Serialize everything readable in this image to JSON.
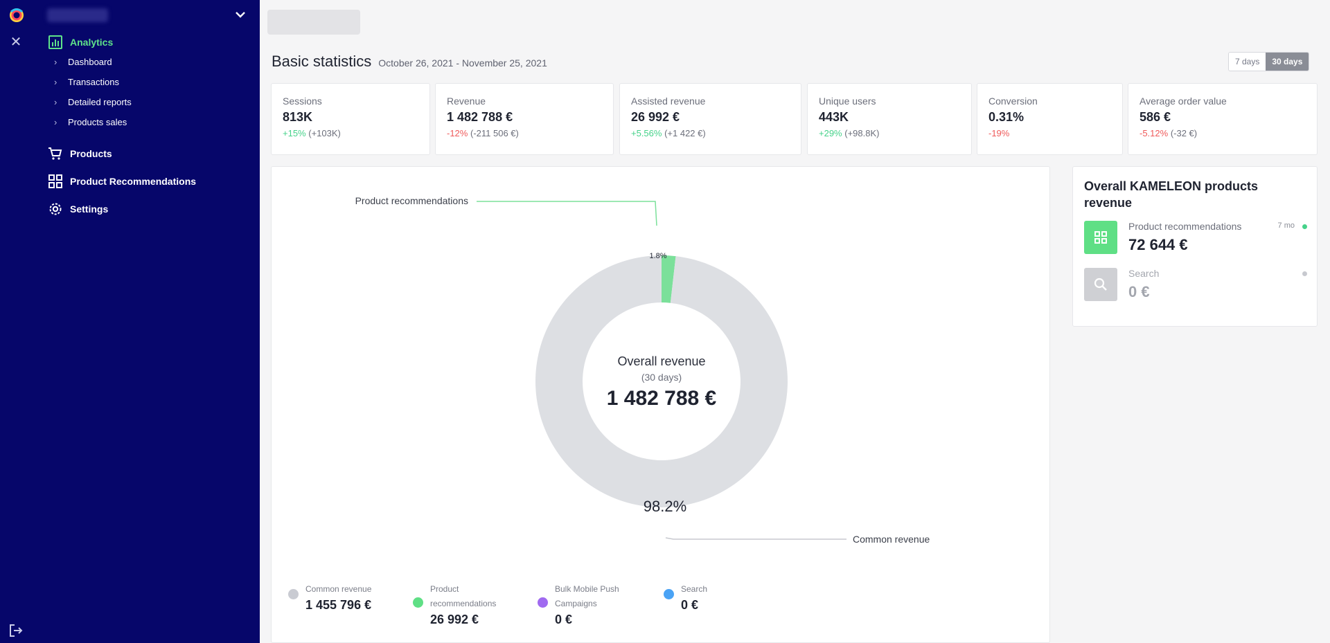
{
  "colors": {
    "sidebar_bg": "#06066a",
    "accent_green": "#5fe38a",
    "positive": "#46d28a",
    "negative": "#ef5a5a",
    "donut_common": "#dddfe3",
    "donut_recommendations": "#7be09a",
    "legend_purple": "#a06af0",
    "legend_blue": "#4aa3f5"
  },
  "sidebar": {
    "analytics": {
      "label": "Analytics",
      "icon": "bar-chart-icon"
    },
    "sub_items": [
      {
        "label": "Dashboard"
      },
      {
        "label": "Transactions"
      },
      {
        "label": "Detailed reports"
      },
      {
        "label": "Products sales"
      }
    ],
    "products": {
      "label": "Products",
      "icon": "cart-icon"
    },
    "recommendations": {
      "label": "Product Recommendations",
      "icon": "grid-icon"
    },
    "settings": {
      "label": "Settings",
      "icon": "gear-icon"
    }
  },
  "header": {
    "title": "Basic statistics",
    "date_range": "October 26, 2021 - November 25, 2021",
    "period_7": "7 days",
    "period_30": "30 days",
    "selected_period": "30 days"
  },
  "stats": [
    {
      "label": "Sessions",
      "value": "813K",
      "change": "+15%",
      "change_abs": "(+103K)",
      "trend": "pos"
    },
    {
      "label": "Revenue",
      "value": "1 482 788 €",
      "change": "-12%",
      "change_abs": "(-211 506 €)",
      "trend": "neg"
    },
    {
      "label": "Assisted revenue",
      "value": "26 992 €",
      "change": "+5.56%",
      "change_abs": "(+1 422 €)",
      "trend": "pos"
    },
    {
      "label": "Unique users",
      "value": "443K",
      "change": "+29%",
      "change_abs": "(+98.8K)",
      "trend": "pos"
    },
    {
      "label": "Conversion",
      "value": "0.31%",
      "change": "-19%",
      "change_abs": "",
      "trend": "neg"
    },
    {
      "label": "Average order value",
      "value": "586 €",
      "change": "-5.12%",
      "change_abs": "(-32 €)",
      "trend": "neg"
    }
  ],
  "chart_data": {
    "type": "pie",
    "center_title": "Overall revenue",
    "center_subtitle": "(30 days)",
    "center_value": "1 482 788 €",
    "slices": [
      {
        "name": "Product recommendations",
        "percent": 1.8,
        "label": "1.8%"
      },
      {
        "name": "Common revenue",
        "percent": 98.2,
        "label": "98.2%"
      }
    ],
    "callouts": {
      "recommendations": "Product recommendations",
      "common": "Common revenue"
    },
    "legend": [
      {
        "name": "Common revenue",
        "value": "1 455 796 €"
      },
      {
        "name": "Product recommendations",
        "value": "26 992 €"
      },
      {
        "name": "Bulk Mobile Push Campaigns",
        "value": "0 €"
      },
      {
        "name": "Search",
        "value": "0 €"
      }
    ]
  },
  "side_panel": {
    "title": "Overall KAMELEON products revenue",
    "items": [
      {
        "name": "Product recommendations",
        "value": "72 644 €",
        "meta": "7 mo",
        "icon": "grid-icon",
        "active": true
      },
      {
        "name": "Search",
        "value": "0 €",
        "meta": "",
        "icon": "search-icon",
        "active": false
      }
    ]
  }
}
